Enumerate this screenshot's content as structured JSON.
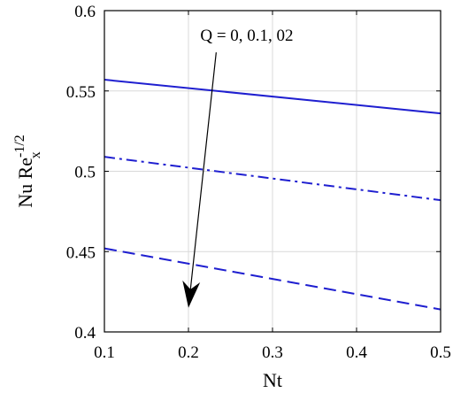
{
  "chart_data": {
    "type": "line",
    "xlabel": "Nt",
    "ylabel": {
      "main": "Nu Re",
      "superscript": "-1/2",
      "subscript": "x"
    },
    "xlim": [
      0.1,
      0.5
    ],
    "ylim": [
      0.4,
      0.6
    ],
    "xticks": [
      "0.1",
      "0.2",
      "0.3",
      "0.4",
      "0.5"
    ],
    "yticks": [
      "0.4",
      "0.45",
      "0.5",
      "0.55",
      "0.6"
    ],
    "grid": true,
    "line_color": "#1f1fd0",
    "series": [
      {
        "style": "solid",
        "x": [
          0.1,
          0.5
        ],
        "y": [
          0.557,
          0.536
        ]
      },
      {
        "style": "dashdot",
        "x": [
          0.1,
          0.5
        ],
        "y": [
          0.509,
          0.482
        ]
      },
      {
        "style": "dashed",
        "x": [
          0.1,
          0.5
        ],
        "y": [
          0.452,
          0.414
        ]
      }
    ],
    "annotation": {
      "text": "Q = 0,  0.1, 02",
      "arrow_from": [
        0.233,
        0.574
      ],
      "arrow_to": [
        0.2,
        0.415
      ]
    }
  }
}
